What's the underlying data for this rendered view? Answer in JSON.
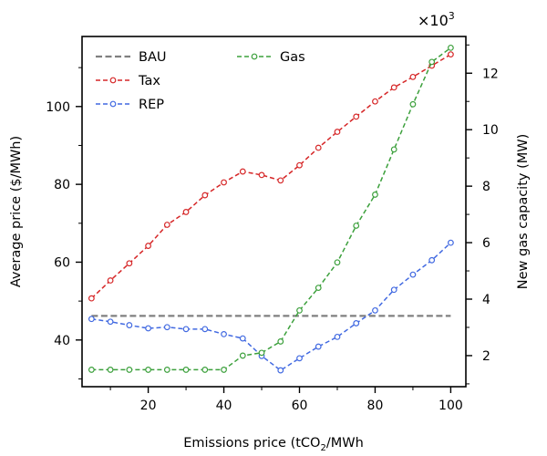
{
  "chart_data": {
    "type": "line",
    "xlabel_main": "Emissions price (tCO",
    "xlabel_sub": "2",
    "xlabel_tail": "/MWh",
    "ylabel_left": "Average price ($/MWh)",
    "ylabel_right": "New gas capacity (MW)",
    "right_axis_multiplier_base": "×10",
    "right_axis_multiplier_exp": "3",
    "xlim": [
      2.5,
      104
    ],
    "ylim_left": [
      28,
      118
    ],
    "ylim_right": [
      0.9,
      13.3
    ],
    "x_ticks": [
      20,
      40,
      60,
      80,
      100
    ],
    "y_left_ticks": [
      40,
      60,
      80,
      100
    ],
    "y_right_ticks": [
      2,
      4,
      6,
      8,
      10,
      12
    ],
    "grid": false,
    "legend_position": "top-left",
    "series": [
      {
        "name": "BAU",
        "axis": "left",
        "style": "dashed-no-marker",
        "color": "#808080",
        "x": [
          5,
          100
        ],
        "y": [
          46.2,
          46.2
        ]
      },
      {
        "name": "Tax",
        "axis": "left",
        "color": "#d62728",
        "x": [
          5,
          10,
          15,
          20,
          25,
          30,
          35,
          40,
          45,
          50,
          55,
          60,
          65,
          70,
          75,
          80,
          85,
          90,
          95,
          100
        ],
        "y": [
          50.7,
          55.3,
          59.7,
          64.2,
          69.6,
          72.9,
          77.2,
          80.5,
          83.3,
          82.4,
          81.0,
          84.9,
          89.4,
          93.5,
          97.4,
          101.3,
          104.9,
          107.6,
          110.5,
          113.4
        ]
      },
      {
        "name": "REP",
        "axis": "left",
        "color": "#4169e1",
        "x": [
          5,
          10,
          15,
          20,
          25,
          30,
          35,
          40,
          45,
          50,
          55,
          60,
          65,
          70,
          75,
          80,
          85,
          90,
          95,
          100
        ],
        "y": [
          45.4,
          44.7,
          43.8,
          43.0,
          43.3,
          42.8,
          42.8,
          41.5,
          40.4,
          35.9,
          32.2,
          35.3,
          38.3,
          40.8,
          44.3,
          47.6,
          52.9,
          56.8,
          60.5,
          65.0
        ]
      },
      {
        "name": "Gas",
        "axis": "right",
        "color": "#3ca03c",
        "x": [
          5,
          10,
          15,
          20,
          25,
          30,
          35,
          40,
          45,
          50,
          55,
          60,
          65,
          70,
          75,
          80,
          85,
          90,
          95,
          100
        ],
        "y": [
          1.5,
          1.5,
          1.5,
          1.5,
          1.5,
          1.5,
          1.5,
          1.5,
          2.0,
          2.1,
          2.5,
          3.6,
          4.4,
          5.3,
          6.6,
          7.7,
          9.3,
          10.9,
          12.4,
          12.9
        ]
      }
    ]
  }
}
